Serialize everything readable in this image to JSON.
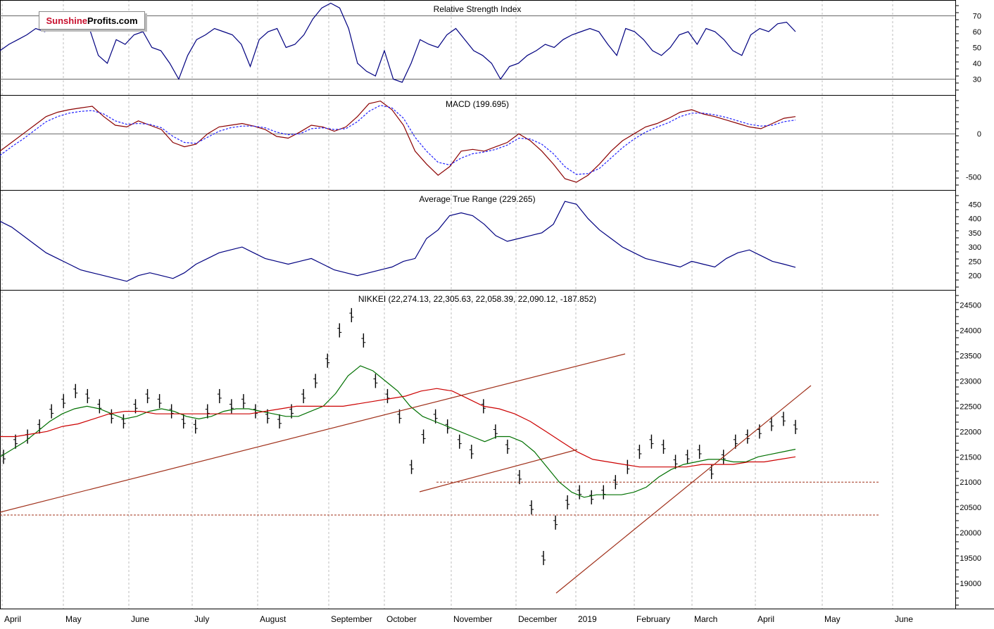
{
  "brand": {
    "part1": "Sunshine",
    "part2": "Profits.com"
  },
  "colors": {
    "grid": "#bcbcbc",
    "line": "#000080",
    "price": "#000000",
    "ma_fast": "#007000",
    "ma_slow": "#cc0000",
    "trend": "#a0301a",
    "support": "#a0301a",
    "macd_signal": "#2020ff"
  },
  "months": [
    "April",
    "May",
    "June",
    "July",
    "August",
    "September",
    "October",
    "November",
    "December",
    "2019",
    "February",
    "March",
    "April",
    "May",
    "June"
  ],
  "chart_data": [
    {
      "type": "line",
      "title": "Relative Strength Index",
      "ylim": [
        20,
        80
      ],
      "yticks": [
        "70",
        "60",
        "50",
        "40",
        "30"
      ],
      "reference_lines": [
        70,
        30
      ],
      "series": [
        {
          "values": [
            48,
            52,
            55,
            58,
            62,
            60,
            63,
            65,
            70,
            68,
            62,
            45,
            40,
            55,
            52,
            58,
            60,
            50,
            48,
            40,
            30,
            45,
            55,
            58,
            62,
            60,
            58,
            52,
            38,
            55,
            60,
            62,
            50,
            52,
            58,
            68,
            75,
            78,
            75,
            62,
            40,
            35,
            32,
            48,
            30,
            28,
            40,
            55,
            52,
            50,
            58,
            62,
            55,
            48,
            45,
            40,
            30,
            38,
            40,
            45,
            48,
            52,
            50,
            55,
            58,
            60,
            62,
            60,
            52,
            45,
            62,
            60,
            55,
            48,
            45,
            50,
            58,
            60,
            52,
            62,
            60,
            55,
            48,
            45,
            58,
            62,
            60,
            65,
            66,
            60
          ]
        }
      ]
    },
    {
      "type": "line",
      "title": "MACD (199.695)",
      "ylim": [
        -650,
        450
      ],
      "yticks": [
        "0",
        "-500"
      ],
      "reference_lines": [
        0
      ],
      "series": [
        {
          "values": [
            -200,
            -100,
            0,
            100,
            200,
            250,
            280,
            300,
            320,
            200,
            100,
            80,
            150,
            100,
            50,
            -100,
            -150,
            -120,
            0,
            80,
            100,
            120,
            90,
            50,
            -30,
            -50,
            20,
            100,
            80,
            30,
            80,
            200,
            350,
            380,
            280,
            100,
            -200,
            -350,
            -480,
            -380,
            -200,
            -180,
            -200,
            -150,
            -100,
            0,
            -80,
            -200,
            -350,
            -520,
            -560,
            -480,
            -350,
            -200,
            -80,
            0,
            80,
            120,
            180,
            250,
            280,
            230,
            200,
            160,
            120,
            80,
            60,
            120,
            180,
            200
          ]
        },
        {
          "values": [
            -250,
            -150,
            -60,
            40,
            140,
            200,
            240,
            260,
            270,
            230,
            150,
            110,
            120,
            110,
            70,
            -30,
            -100,
            -110,
            -40,
            30,
            70,
            90,
            90,
            70,
            20,
            -10,
            0,
            60,
            70,
            50,
            60,
            140,
            260,
            330,
            300,
            180,
            -40,
            -200,
            -330,
            -360,
            -280,
            -230,
            -210,
            -180,
            -130,
            -50,
            -60,
            -120,
            -230,
            -380,
            -470,
            -460,
            -400,
            -280,
            -160,
            -60,
            20,
            80,
            130,
            200,
            240,
            240,
            220,
            190,
            150,
            110,
            90,
            100,
            140,
            160
          ]
        }
      ]
    },
    {
      "type": "line",
      "title": "Average True Range (229.265)",
      "ylim": [
        150,
        500
      ],
      "yticks": [
        "450",
        "400",
        "350",
        "300",
        "250",
        "200"
      ],
      "series": [
        {
          "values": [
            390,
            370,
            340,
            310,
            280,
            260,
            240,
            220,
            210,
            200,
            190,
            180,
            200,
            210,
            200,
            190,
            210,
            240,
            260,
            280,
            290,
            300,
            280,
            260,
            250,
            240,
            250,
            260,
            240,
            220,
            210,
            200,
            210,
            220,
            230,
            250,
            260,
            330,
            360,
            410,
            420,
            410,
            380,
            340,
            320,
            330,
            340,
            350,
            380,
            460,
            450,
            400,
            360,
            330,
            300,
            280,
            260,
            250,
            240,
            230,
            250,
            240,
            230,
            260,
            280,
            290,
            270,
            250,
            240,
            229
          ]
        }
      ]
    },
    {
      "type": "bar",
      "title": "NIKKEI (22,274.13, 22,305.63, 22,058.39, 22,090.12, -187.852)",
      "ylim": [
        18500,
        24800
      ],
      "yticks": [
        "24500",
        "24000",
        "23500",
        "23000",
        "22500",
        "22000",
        "21500",
        "21000",
        "20500",
        "20000",
        "19500",
        "19000"
      ],
      "support_levels": [
        21000,
        20350
      ],
      "series": [
        {
          "name": "price",
          "values": [
            21500,
            21800,
            21900,
            22100,
            22400,
            22600,
            22800,
            22700,
            22500,
            22300,
            22200,
            22500,
            22700,
            22600,
            22400,
            22200,
            22100,
            22400,
            22700,
            22500,
            22600,
            22400,
            22300,
            22200,
            22400,
            22700,
            23000,
            23400,
            24000,
            24300,
            23800,
            23000,
            22700,
            22300,
            21300,
            21900,
            22300,
            22100,
            21800,
            21600,
            22500,
            22000,
            21700,
            21100,
            20500,
            19500,
            20200,
            20600,
            20800,
            20700,
            20800,
            21000,
            21300,
            21600,
            21800,
            21700,
            21400,
            21500,
            21600,
            21200,
            21500,
            21800,
            21900,
            22000,
            22150,
            22250,
            22090
          ]
        },
        {
          "name": "ma_fast",
          "values": [
            21500,
            21650,
            21800,
            22000,
            22200,
            22350,
            22450,
            22500,
            22450,
            22350,
            22250,
            22300,
            22400,
            22450,
            22400,
            22300,
            22250,
            22300,
            22400,
            22450,
            22450,
            22400,
            22350,
            22300,
            22300,
            22400,
            22500,
            22750,
            23100,
            23300,
            23200,
            23000,
            22800,
            22500,
            22300,
            22200,
            22100,
            22000,
            21900,
            21800,
            21900,
            21900,
            21800,
            21600,
            21300,
            21000,
            20800,
            20700,
            20750,
            20750,
            20750,
            20800,
            20900,
            21100,
            21250,
            21350,
            21400,
            21450,
            21450,
            21400,
            21400,
            21500,
            21550,
            21600,
            21650
          ]
        },
        {
          "name": "ma_slow",
          "values": [
            21900,
            21900,
            21950,
            22000,
            22100,
            22150,
            22250,
            22350,
            22400,
            22400,
            22350,
            22350,
            22350,
            22350,
            22350,
            22350,
            22350,
            22400,
            22450,
            22500,
            22500,
            22500,
            22500,
            22550,
            22600,
            22650,
            22700,
            22800,
            22850,
            22800,
            22650,
            22500,
            22450,
            22350,
            22200,
            22000,
            21800,
            21600,
            21450,
            21400,
            21350,
            21300,
            21300,
            21300,
            21300,
            21350,
            21350,
            21350,
            21400,
            21400,
            21450,
            21500
          ]
        }
      ]
    }
  ]
}
